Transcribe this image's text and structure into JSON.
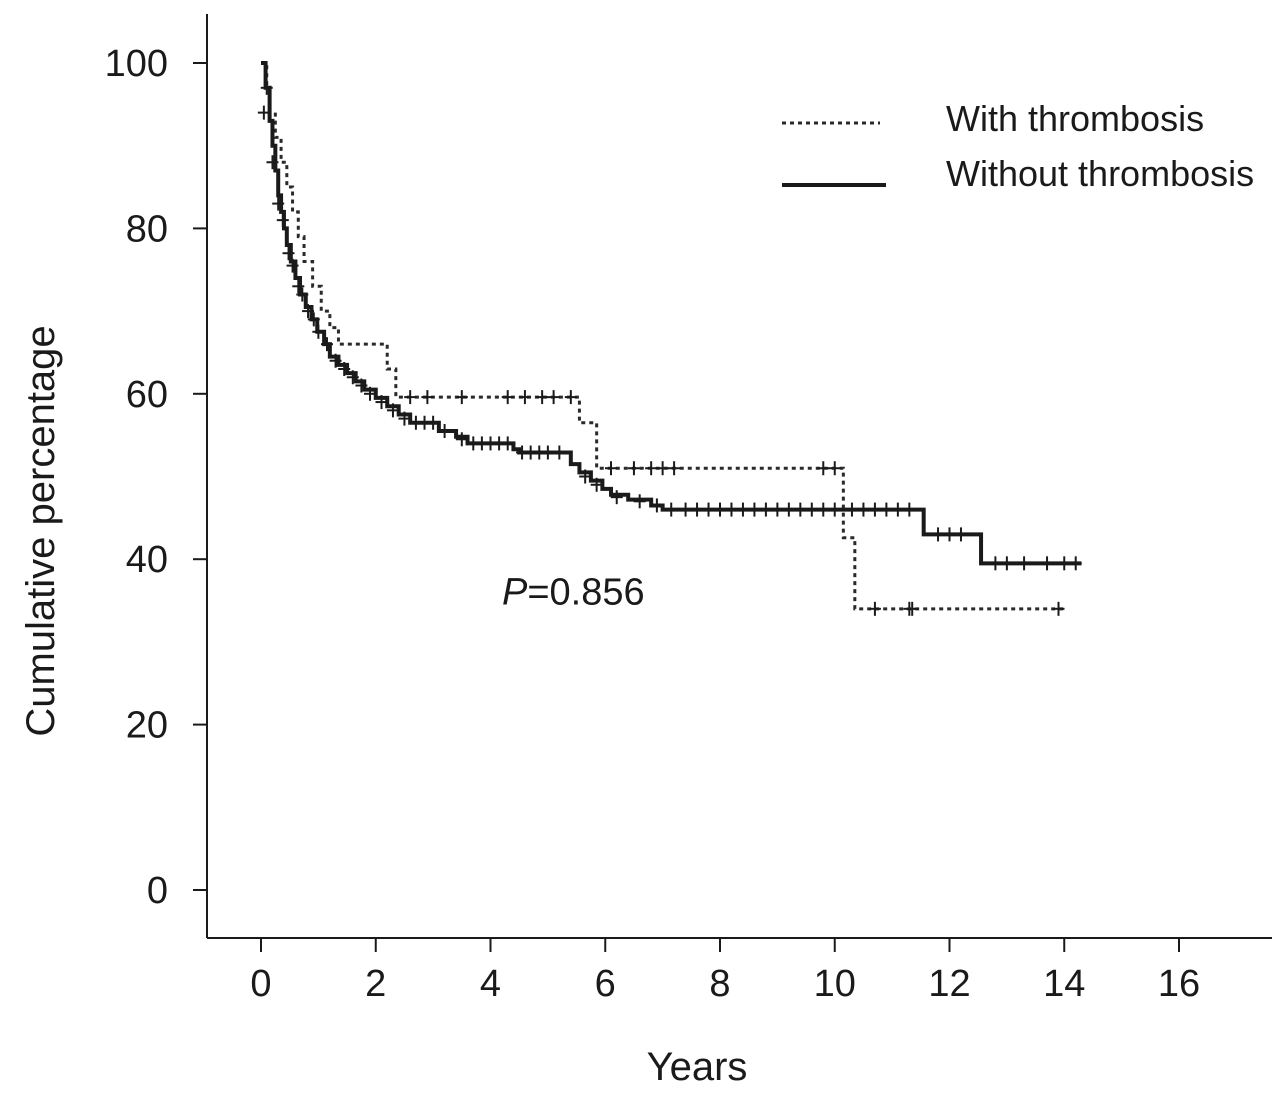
{
  "chart_data": {
    "type": "line",
    "subtype": "kaplan-meier step curve",
    "xlabel": "Years",
    "ylabel": "Cumulative percentage",
    "xlim": [
      -1,
      17.5
    ],
    "ylim": [
      -6,
      106
    ],
    "x_ticks": [
      0,
      2,
      4,
      6,
      8,
      10,
      12,
      14,
      16
    ],
    "y_ticks": [
      0,
      20,
      40,
      60,
      80,
      100
    ],
    "legend_position": "top-right",
    "annotation": {
      "italic": "P",
      "rest": "=0.856",
      "x": 4.2,
      "y": 34.5
    },
    "series": [
      {
        "name": "With thrombosis",
        "style": "dotted",
        "color": "#2a2a2a",
        "steps": [
          [
            0.0,
            100
          ],
          [
            0.1,
            97
          ],
          [
            0.15,
            94
          ],
          [
            0.25,
            91
          ],
          [
            0.35,
            88
          ],
          [
            0.45,
            85
          ],
          [
            0.55,
            82
          ],
          [
            0.65,
            79
          ],
          [
            0.75,
            76
          ],
          [
            0.9,
            73
          ],
          [
            1.05,
            70
          ],
          [
            1.2,
            68
          ],
          [
            1.35,
            66
          ],
          [
            2.2,
            63
          ],
          [
            2.35,
            59.6
          ],
          [
            5.55,
            56.5
          ],
          [
            5.85,
            51
          ],
          [
            10.15,
            42.6
          ],
          [
            10.35,
            34
          ]
        ],
        "end_x": 14.0,
        "censored": [
          [
            2.6,
            59.6
          ],
          [
            2.9,
            59.6
          ],
          [
            3.5,
            59.6
          ],
          [
            4.3,
            59.6
          ],
          [
            4.6,
            59.6
          ],
          [
            4.9,
            59.6
          ],
          [
            5.1,
            59.6
          ],
          [
            5.4,
            59.6
          ],
          [
            6.1,
            51
          ],
          [
            6.5,
            51
          ],
          [
            6.8,
            51
          ],
          [
            7.0,
            51
          ],
          [
            7.2,
            51
          ],
          [
            9.8,
            51
          ],
          [
            10.0,
            51
          ],
          [
            10.7,
            34
          ],
          [
            11.3,
            34
          ],
          [
            11.35,
            34
          ],
          [
            13.9,
            34
          ]
        ]
      },
      {
        "name": "Without thrombosis",
        "style": "solid",
        "color": "#1a1a1a",
        "steps": [
          [
            0.0,
            100
          ],
          [
            0.08,
            97
          ],
          [
            0.15,
            93
          ],
          [
            0.2,
            90
          ],
          [
            0.25,
            87
          ],
          [
            0.3,
            84
          ],
          [
            0.35,
            82
          ],
          [
            0.4,
            80
          ],
          [
            0.45,
            78
          ],
          [
            0.52,
            76
          ],
          [
            0.6,
            74
          ],
          [
            0.68,
            72
          ],
          [
            0.78,
            70.5
          ],
          [
            0.88,
            69
          ],
          [
            0.98,
            67.5
          ],
          [
            1.1,
            66
          ],
          [
            1.2,
            64.5
          ],
          [
            1.35,
            63.5
          ],
          [
            1.5,
            62.5
          ],
          [
            1.65,
            61.5
          ],
          [
            1.8,
            60.5
          ],
          [
            2.0,
            59.5
          ],
          [
            2.2,
            58.5
          ],
          [
            2.4,
            57.5
          ],
          [
            2.6,
            56.5
          ],
          [
            3.1,
            55.5
          ],
          [
            3.4,
            54.8
          ],
          [
            3.6,
            54
          ],
          [
            4.4,
            53.3
          ],
          [
            4.5,
            52.9
          ],
          [
            5.4,
            51.5
          ],
          [
            5.55,
            50.5
          ],
          [
            5.75,
            49.5
          ],
          [
            5.95,
            48.5
          ],
          [
            6.1,
            47.8
          ],
          [
            6.4,
            47.2
          ],
          [
            6.8,
            46.5
          ],
          [
            7.0,
            46
          ],
          [
            11.55,
            43
          ],
          [
            12.55,
            39.5
          ]
        ],
        "end_x": 14.3,
        "censored": [
          [
            0.05,
            94
          ],
          [
            0.1,
            97
          ],
          [
            0.2,
            88
          ],
          [
            0.3,
            83
          ],
          [
            0.38,
            81
          ],
          [
            0.48,
            77
          ],
          [
            0.55,
            75.5
          ],
          [
            0.65,
            73
          ],
          [
            0.72,
            72
          ],
          [
            0.82,
            70
          ],
          [
            0.92,
            69
          ],
          [
            1.0,
            67.5
          ],
          [
            1.15,
            66
          ],
          [
            1.3,
            64
          ],
          [
            1.45,
            63
          ],
          [
            1.6,
            62
          ],
          [
            1.75,
            61
          ],
          [
            1.9,
            60
          ],
          [
            2.1,
            59
          ],
          [
            2.3,
            58
          ],
          [
            2.5,
            57
          ],
          [
            2.7,
            56.5
          ],
          [
            2.85,
            56.5
          ],
          [
            3.0,
            56.5
          ],
          [
            3.2,
            55.5
          ],
          [
            3.5,
            54.5
          ],
          [
            3.7,
            54
          ],
          [
            3.85,
            54
          ],
          [
            4.0,
            54
          ],
          [
            4.15,
            54
          ],
          [
            4.3,
            54
          ],
          [
            4.55,
            52.9
          ],
          [
            4.7,
            52.9
          ],
          [
            4.85,
            52.9
          ],
          [
            5.0,
            52.9
          ],
          [
            5.2,
            52.9
          ],
          [
            5.65,
            50
          ],
          [
            5.85,
            49
          ],
          [
            6.2,
            47.5
          ],
          [
            6.6,
            47
          ],
          [
            6.9,
            46.5
          ],
          [
            7.15,
            46
          ],
          [
            7.4,
            46
          ],
          [
            7.6,
            46
          ],
          [
            7.8,
            46
          ],
          [
            8.0,
            46
          ],
          [
            8.2,
            46
          ],
          [
            8.4,
            46
          ],
          [
            8.6,
            46
          ],
          [
            8.8,
            46
          ],
          [
            9.0,
            46
          ],
          [
            9.2,
            46
          ],
          [
            9.4,
            46
          ],
          [
            9.6,
            46
          ],
          [
            9.8,
            46
          ],
          [
            10.0,
            46
          ],
          [
            10.3,
            46
          ],
          [
            10.5,
            46
          ],
          [
            10.7,
            46
          ],
          [
            10.9,
            46
          ],
          [
            11.1,
            46
          ],
          [
            11.3,
            46
          ],
          [
            11.8,
            43
          ],
          [
            12.0,
            43
          ],
          [
            12.2,
            43
          ],
          [
            12.8,
            39.5
          ],
          [
            13.0,
            39.5
          ],
          [
            13.3,
            39.5
          ],
          [
            13.7,
            39.5
          ],
          [
            14.0,
            39.5
          ],
          [
            14.2,
            39.5
          ]
        ]
      }
    ]
  }
}
